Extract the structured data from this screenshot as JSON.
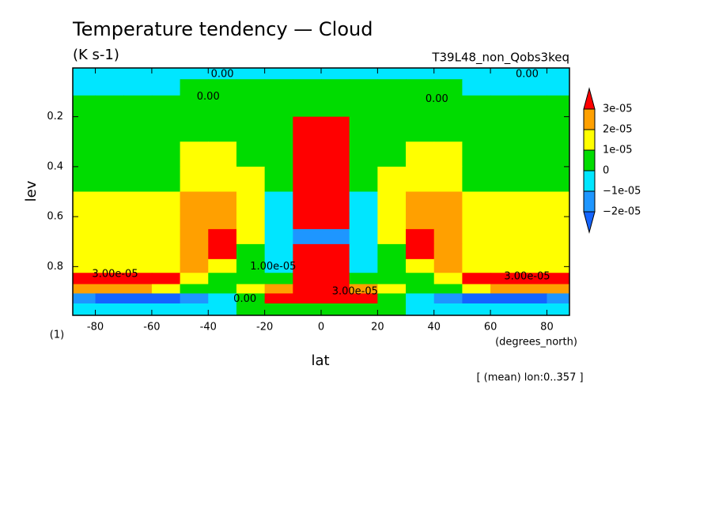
{
  "chart_data": {
    "type": "contour",
    "title": "Temperature tendency — Cloud",
    "subtitle": "(K s-1)",
    "run_label": "T39L48_non_Qobs3keq",
    "footer": "[ (mean) lon:0..357 ]",
    "x_label": "lat",
    "x_unit": "(degrees_north)",
    "y_label": "lev",
    "y_unit": "(1)",
    "xlim": [
      -88,
      88
    ],
    "ylim": [
      0.995,
      0.005
    ],
    "xticks": [
      -80,
      -60,
      -40,
      -20,
      0,
      20,
      40,
      60,
      80
    ],
    "yticks": [
      0.2,
      0.4,
      0.6,
      0.8
    ],
    "x": [
      -85,
      -75,
      -65,
      -55,
      -45,
      -35,
      -25,
      -15,
      -5,
      5,
      15,
      25,
      35,
      45,
      55,
      65,
      75,
      85
    ],
    "y": [
      0.02,
      0.08,
      0.15,
      0.25,
      0.35,
      0.45,
      0.55,
      0.62,
      0.68,
      0.74,
      0.8,
      0.85,
      0.89,
      0.925,
      0.97
    ],
    "z": [
      [
        -3e-06,
        -3e-06,
        -3e-06,
        -3e-06,
        -3e-06,
        -3e-06,
        -3e-06,
        -3e-06,
        -3e-06,
        -3e-06,
        -3e-06,
        -3e-06,
        -3e-06,
        -3e-06,
        -3e-06,
        -3e-06,
        -3e-06,
        -3e-06
      ],
      [
        -3e-06,
        -3e-06,
        -3e-06,
        -3e-06,
        3e-06,
        3e-06,
        3e-06,
        3e-06,
        3e-06,
        3e-06,
        3e-06,
        3e-06,
        3e-06,
        3e-06,
        -3e-06,
        -3e-06,
        -3e-06,
        -3e-06
      ],
      [
        3e-06,
        3e-06,
        3e-06,
        3e-06,
        3e-06,
        3e-06,
        3e-06,
        3e-06,
        5e-06,
        5e-06,
        3e-06,
        3e-06,
        3e-06,
        3e-06,
        3e-06,
        3e-06,
        3e-06,
        3e-06
      ],
      [
        4e-06,
        4e-06,
        4e-06,
        4e-06,
        4e-06,
        4e-06,
        4e-06,
        4e-06,
        3.5e-05,
        3.5e-05,
        4e-06,
        4e-06,
        4e-06,
        4e-06,
        4e-06,
        4e-06,
        4e-06,
        4e-06
      ],
      [
        5e-06,
        5e-06,
        5e-06,
        6e-06,
        1.2e-05,
        1.3e-05,
        6e-06,
        5e-06,
        3.5e-05,
        3.5e-05,
        5e-06,
        6e-06,
        1.3e-05,
        1.2e-05,
        6e-06,
        5e-06,
        5e-06,
        5e-06
      ],
      [
        6e-06,
        6e-06,
        7e-06,
        9e-06,
        1.5e-05,
        1.8e-05,
        1.2e-05,
        4e-06,
        3.5e-05,
        3.5e-05,
        4e-06,
        1.2e-05,
        1.8e-05,
        1.5e-05,
        9e-06,
        7e-06,
        6e-06,
        6e-06
      ],
      [
        1.1e-05,
        1.1e-05,
        1.2e-05,
        1.3e-05,
        2.2e-05,
        2.5e-05,
        1.3e-05,
        -3e-06,
        3.5e-05,
        3.5e-05,
        -3e-06,
        1.3e-05,
        2.5e-05,
        2.2e-05,
        1.3e-05,
        1.2e-05,
        1.1e-05,
        1.1e-05
      ],
      [
        1.2e-05,
        1.2e-05,
        1.3e-05,
        1.5e-05,
        2.4e-05,
        2.6e-05,
        1.2e-05,
        -5e-06,
        3.2e-05,
        3.2e-05,
        -5e-06,
        1.2e-05,
        2.6e-05,
        2.4e-05,
        1.5e-05,
        1.3e-05,
        1.2e-05,
        1.2e-05
      ],
      [
        1.3e-05,
        1.3e-05,
        1.3e-05,
        1.6e-05,
        2.5e-05,
        3.2e-05,
        1e-05,
        -5e-06,
        -1.2e-05,
        -1.2e-05,
        -5e-06,
        1e-05,
        3.2e-05,
        2.5e-05,
        1.6e-05,
        1.3e-05,
        1.3e-05,
        1.3e-05
      ],
      [
        1.4e-05,
        1.4e-05,
        1.5e-05,
        1.8e-05,
        2.6e-05,
        3.3e-05,
        8e-06,
        -5e-06,
        3.2e-05,
        3.2e-05,
        -5e-06,
        8e-06,
        3.3e-05,
        2.6e-05,
        1.8e-05,
        1.5e-05,
        1.4e-05,
        1.4e-05
      ],
      [
        1.8e-05,
        1.8e-05,
        1.8e-05,
        1.9e-05,
        2.4e-05,
        1.5e-05,
        5e-06,
        -3e-06,
        3.5e-05,
        3.5e-05,
        -3e-06,
        5e-06,
        1.5e-05,
        2.4e-05,
        1.9e-05,
        1.8e-05,
        1.8e-05,
        1.8e-05
      ],
      [
        3.3e-05,
        3.3e-05,
        3.2e-05,
        3.1e-05,
        1.8e-05,
        8e-06,
        5e-06,
        8e-06,
        3.5e-05,
        3.5e-05,
        8e-06,
        5e-06,
        8e-06,
        1.8e-05,
        3.1e-05,
        3.2e-05,
        3.3e-05,
        3.3e-05
      ],
      [
        2.2e-05,
        2.2e-05,
        2.1e-05,
        1.5e-05,
        8e-06,
        4e-06,
        1.5e-05,
        2.5e-05,
        3.5e-05,
        3.5e-05,
        2.5e-05,
        1.5e-05,
        4e-06,
        8e-06,
        1.5e-05,
        2.1e-05,
        2.2e-05,
        2.2e-05
      ],
      [
        -1.5e-05,
        -2.3e-05,
        -2.3e-05,
        -2.1e-05,
        -1.2e-05,
        -4e-06,
        5e-06,
        3.2e-05,
        3.5e-05,
        3.5e-05,
        3.2e-05,
        5e-06,
        -4e-06,
        -1.2e-05,
        -2.1e-05,
        -2.3e-05,
        -2.3e-05,
        -1.5e-05
      ],
      [
        -5e-06,
        -8e-06,
        -8e-06,
        -6e-06,
        -3e-06,
        -2e-06,
        3e-06,
        5e-06,
        6e-06,
        6e-06,
        5e-06,
        3e-06,
        -2e-06,
        -3e-06,
        -6e-06,
        -8e-06,
        -8e-06,
        -5e-06
      ]
    ],
    "levels": [
      {
        "value": -2e-05,
        "label": "−2e-05"
      },
      {
        "value": -1e-05,
        "label": "−1e-05"
      },
      0,
      {
        "value": 1e-05,
        "label": "1e-05"
      },
      {
        "value": 2e-05,
        "label": "2e-05"
      },
      {
        "value": 3e-05,
        "label": "3e-05"
      }
    ],
    "colors": [
      "#1464ff",
      "#1e96ff",
      "#00e6ff",
      "#00dc00",
      "#ffff00",
      "#ffa000",
      "#ff0000"
    ],
    "annotations": [
      {
        "text": "0.00",
        "x": -35,
        "y": 0.03
      },
      {
        "text": "0.00",
        "x": 73,
        "y": 0.03
      },
      {
        "text": "0.00",
        "x": -40,
        "y": 0.12
      },
      {
        "text": "0.00",
        "x": 41,
        "y": 0.13
      },
      {
        "text": "0.00",
        "x": -27,
        "y": 0.93
      },
      {
        "text": "3.00e-05",
        "x": -73,
        "y": 0.83
      },
      {
        "text": "3.00e-05",
        "x": 73,
        "y": 0.84
      },
      {
        "text": "3.00e-05",
        "x": 12,
        "y": 0.9
      },
      {
        "text": "1.00e-05",
        "x": -17,
        "y": 0.8
      }
    ]
  }
}
